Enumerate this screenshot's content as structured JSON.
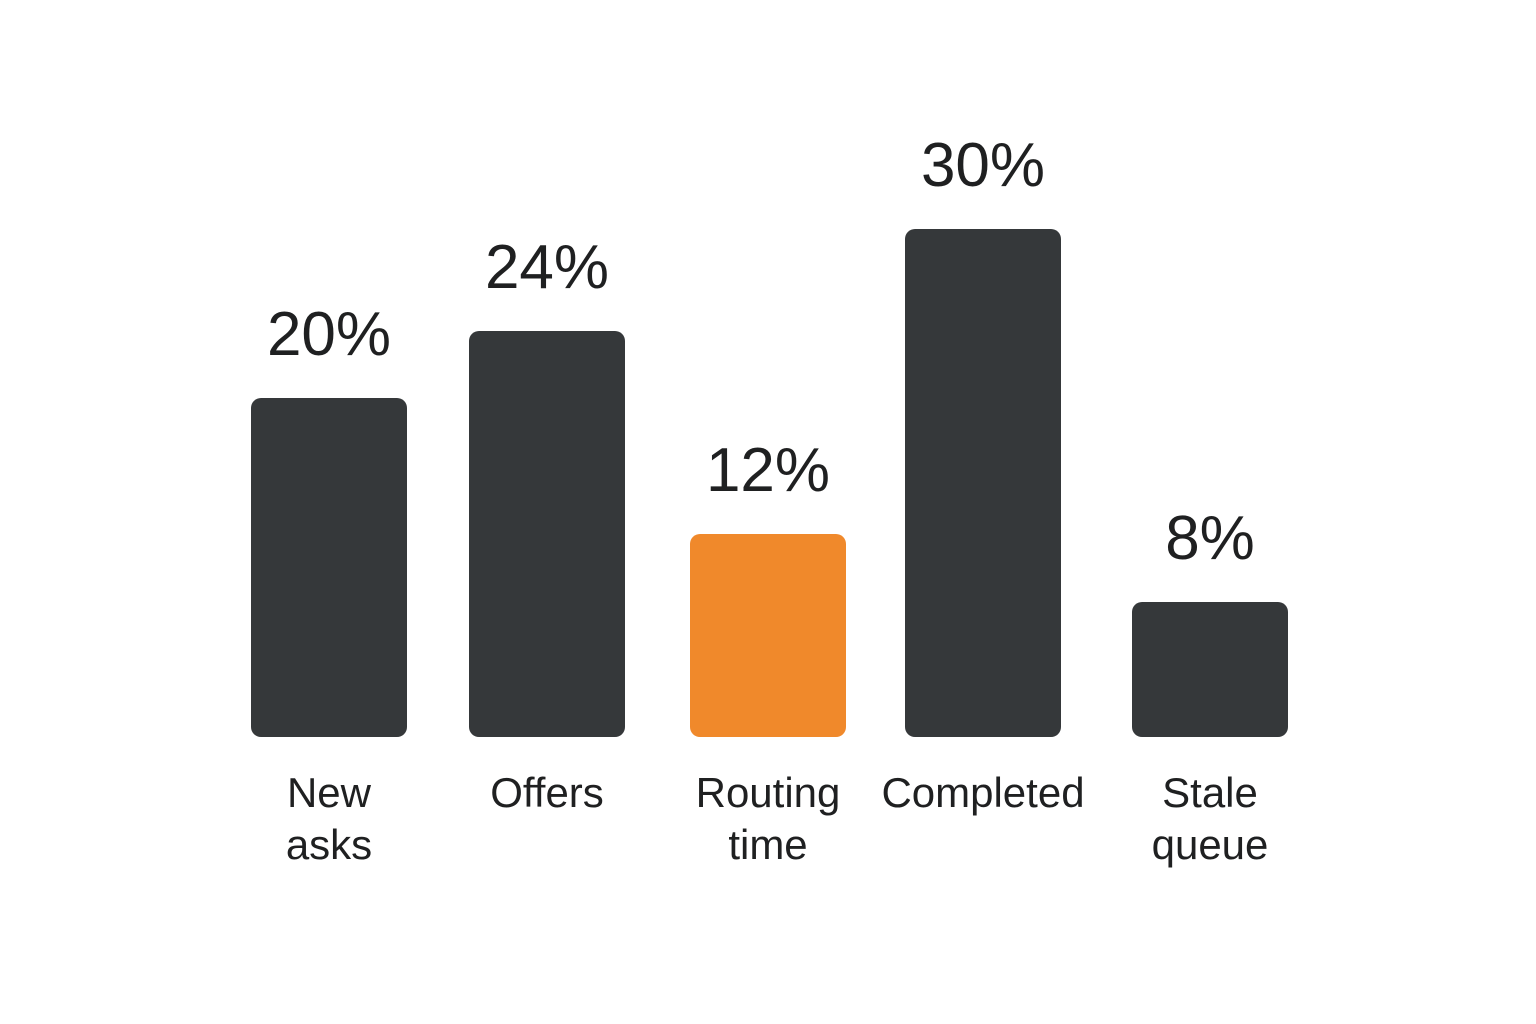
{
  "chart_data": {
    "type": "bar",
    "categories": [
      "New asks",
      "Offers",
      "Routing time",
      "Completed",
      "Stale queue"
    ],
    "values": [
      20,
      24,
      12,
      30,
      8
    ],
    "value_labels": [
      "20%",
      "24%",
      "12%",
      "30%",
      "8%"
    ],
    "colors": [
      "#35383a",
      "#35383a",
      "#f0892b",
      "#35383a",
      "#35383a"
    ]
  }
}
